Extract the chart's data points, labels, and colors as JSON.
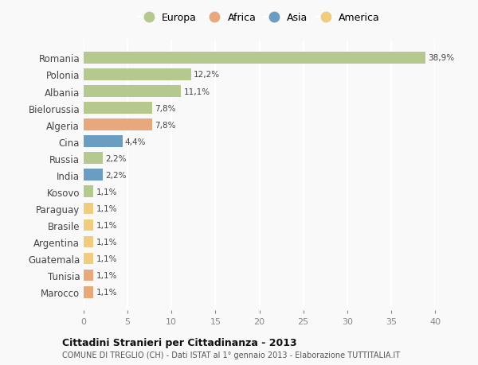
{
  "countries": [
    "Romania",
    "Polonia",
    "Albania",
    "Bielorussia",
    "Algeria",
    "Cina",
    "Russia",
    "India",
    "Kosovo",
    "Paraguay",
    "Brasile",
    "Argentina",
    "Guatemala",
    "Tunisia",
    "Marocco"
  ],
  "values": [
    38.9,
    12.2,
    11.1,
    7.8,
    7.8,
    4.4,
    2.2,
    2.2,
    1.1,
    1.1,
    1.1,
    1.1,
    1.1,
    1.1,
    1.1
  ],
  "labels": [
    "38,9%",
    "12,2%",
    "11,1%",
    "7,8%",
    "7,8%",
    "4,4%",
    "2,2%",
    "2,2%",
    "1,1%",
    "1,1%",
    "1,1%",
    "1,1%",
    "1,1%",
    "1,1%",
    "1,1%"
  ],
  "continents": [
    "Europa",
    "Europa",
    "Europa",
    "Europa",
    "Africa",
    "Asia",
    "Europa",
    "Asia",
    "Europa",
    "America",
    "America",
    "America",
    "America",
    "Africa",
    "Africa"
  ],
  "colors": {
    "Europa": "#b5c98e",
    "Africa": "#e8a87c",
    "Asia": "#6b9dc2",
    "America": "#f0cc7e"
  },
  "legend_order": [
    "Europa",
    "Africa",
    "Asia",
    "America"
  ],
  "title": "Cittadini Stranieri per Cittadinanza - 2013",
  "subtitle": "COMUNE DI TREGLIO (CH) - Dati ISTAT al 1° gennaio 2013 - Elaborazione TUTTITALIA.IT",
  "xlim": [
    0,
    40
  ],
  "xticks": [
    0,
    5,
    10,
    15,
    20,
    25,
    30,
    35,
    40
  ],
  "background_color": "#f9f9f9",
  "grid_color": "#ffffff"
}
